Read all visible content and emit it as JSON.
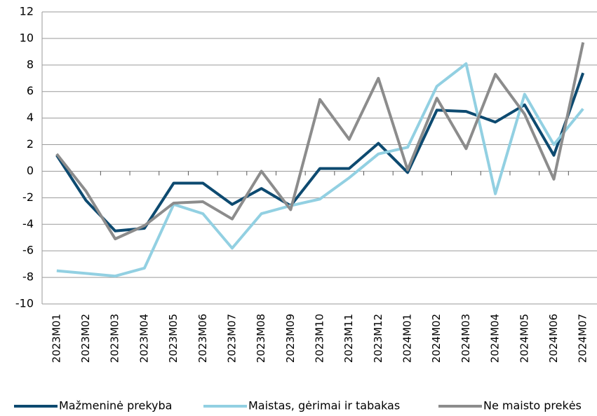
{
  "chart_data": {
    "type": "line",
    "categories": [
      "2023M01",
      "2023M02",
      "2023M03",
      "2023M04",
      "2023M05",
      "2023M06",
      "2023M07",
      "2023M08",
      "2023M09",
      "2023M10",
      "2023M11",
      "2023M12",
      "2024M01",
      "2024M02",
      "2024M03",
      "2024M04",
      "2024M05",
      "2024M06",
      "2024M07"
    ],
    "series": [
      {
        "name": "Mažmeninė prekyba",
        "color": "#0d4a70",
        "values": [
          1.2,
          -2.2,
          -4.5,
          -4.3,
          -0.9,
          -0.9,
          -2.5,
          -1.3,
          -2.6,
          0.2,
          0.2,
          2.1,
          -0.1,
          4.6,
          4.5,
          3.7,
          5.0,
          1.2,
          7.4
        ]
      },
      {
        "name": "Maistas, gėrimai ir tabakas",
        "color": "#92d0e2",
        "values": [
          -7.5,
          -7.7,
          -7.9,
          -7.3,
          -2.5,
          -3.2,
          -5.8,
          -3.2,
          -2.6,
          -2.1,
          -0.5,
          1.3,
          1.8,
          6.4,
          8.1,
          -1.7,
          5.8,
          2.0,
          4.7
        ]
      },
      {
        "name": "Ne maisto prekės",
        "color": "#8c8c8c",
        "values": [
          1.3,
          -1.5,
          -5.1,
          -4.1,
          -2.4,
          -2.3,
          -3.6,
          0.0,
          -2.9,
          5.4,
          2.4,
          7.0,
          0.1,
          5.5,
          1.7,
          7.3,
          4.3,
          -0.6,
          9.7
        ]
      }
    ],
    "ylim": [
      -10,
      12
    ],
    "yticks": [
      -10,
      -8,
      -6,
      -4,
      -2,
      0,
      2,
      4,
      6,
      8,
      10,
      12
    ],
    "grid": true,
    "legend": "bottom"
  }
}
